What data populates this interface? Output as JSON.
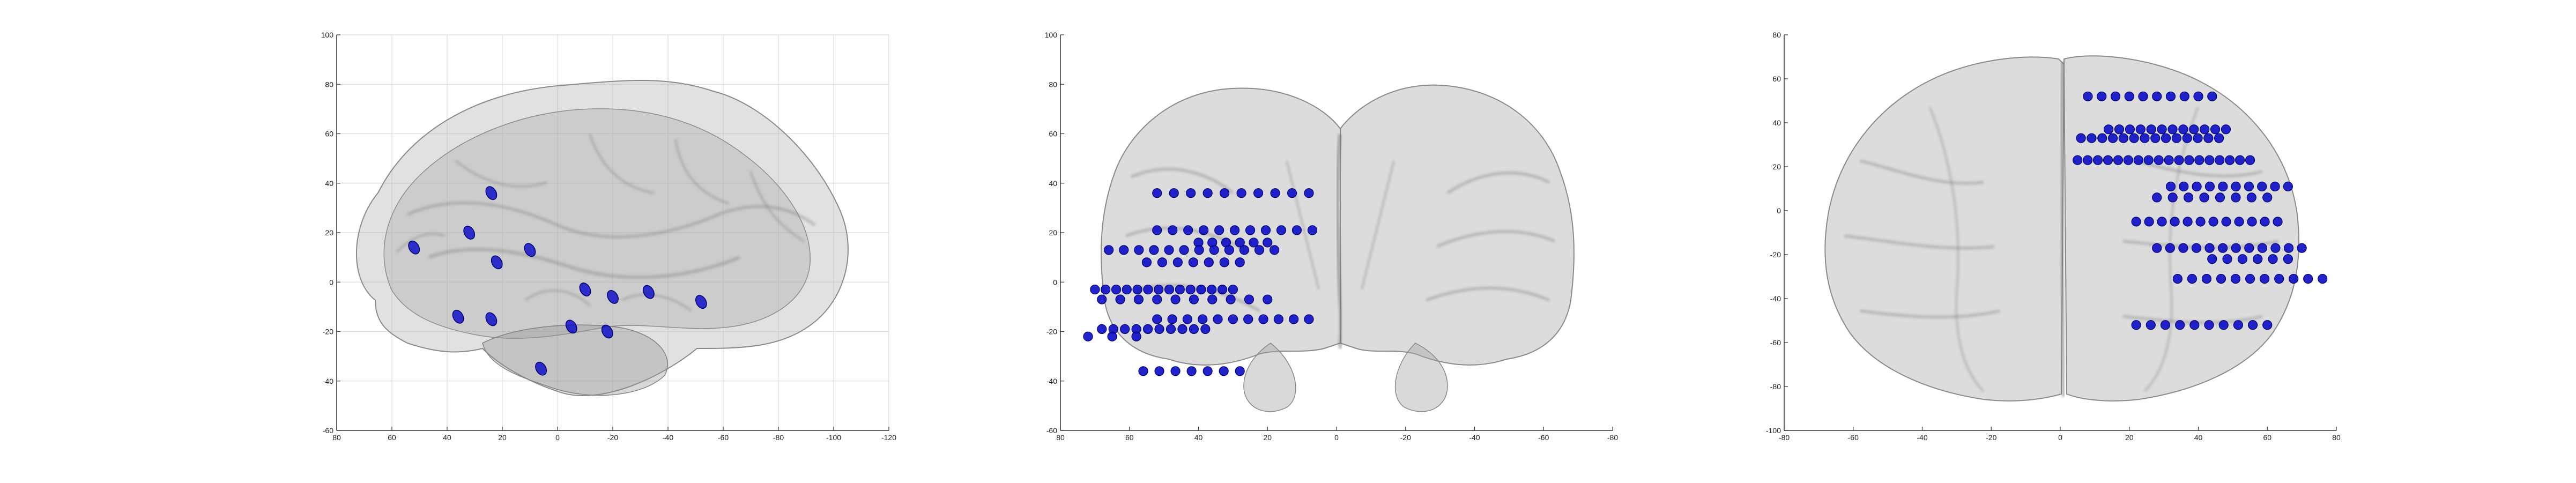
{
  "figure": {
    "brain_fill": "#9a9a9a",
    "brain_stroke": "#7a7a7a",
    "electrode_color": "#1010c8",
    "electrode_edge": "#00006e"
  },
  "chart_data": [
    {
      "type": "scatter",
      "view": "sagittal",
      "grid": true,
      "xlim": [
        80,
        -120
      ],
      "ylim": [
        -60,
        100
      ],
      "xticks": [
        "80",
        "60",
        "40",
        "20",
        "0",
        "-20",
        "-40",
        "-60",
        "-80",
        "-100",
        "-120"
      ],
      "yticks": [
        "100",
        "80",
        "60",
        "40",
        "20",
        "0",
        "-20",
        "-40",
        "-60"
      ],
      "points": [
        {
          "x": 52,
          "y": 14
        },
        {
          "x": 32,
          "y": 20
        },
        {
          "x": 24,
          "y": 36
        },
        {
          "x": 22,
          "y": 8
        },
        {
          "x": 10,
          "y": 13
        },
        {
          "x": 36,
          "y": -14
        },
        {
          "x": 24,
          "y": -15
        },
        {
          "x": -10,
          "y": -3
        },
        {
          "x": -20,
          "y": -6
        },
        {
          "x": -33,
          "y": -4
        },
        {
          "x": -52,
          "y": -8
        },
        {
          "x": -5,
          "y": -18
        },
        {
          "x": -18,
          "y": -20
        },
        {
          "x": 6,
          "y": -35
        }
      ]
    },
    {
      "type": "scatter",
      "view": "coronal",
      "grid": false,
      "xlim": [
        80,
        -80
      ],
      "ylim": [
        -60,
        100
      ],
      "xticks": [
        "80",
        "60",
        "40",
        "20",
        "0",
        "-20",
        "-40",
        "-60",
        "-80"
      ],
      "yticks": [
        "100",
        "80",
        "60",
        "40",
        "20",
        "0",
        "-20",
        "-40",
        "-60"
      ],
      "rows": [
        {
          "y": 36,
          "x_start": 52,
          "x_end": 8,
          "n": 10
        },
        {
          "y": 21,
          "x_start": 52,
          "x_end": 7,
          "n": 11
        },
        {
          "y": 16,
          "x_start": 40,
          "x_end": 20,
          "n": 6
        },
        {
          "y": 13,
          "x_start": 66,
          "x_end": 18,
          "n": 12
        },
        {
          "y": 8,
          "x_start": 55,
          "x_end": 28,
          "n": 7
        },
        {
          "y": -3,
          "x_start": 70,
          "x_end": 30,
          "n": 14
        },
        {
          "y": -7,
          "x_start": 68,
          "x_end": 20,
          "n": 10
        },
        {
          "y": -15,
          "x_start": 52,
          "x_end": 8,
          "n": 11
        },
        {
          "y": -19,
          "x_start": 68,
          "x_end": 38,
          "n": 10
        },
        {
          "y": -22,
          "x_start": 72,
          "x_end": 58,
          "n": 3
        },
        {
          "y": -36,
          "x_start": 56,
          "x_end": 28,
          "n": 7
        }
      ]
    },
    {
      "type": "scatter",
      "view": "axial",
      "grid": false,
      "xlim": [
        -80,
        80
      ],
      "ylim": [
        -100,
        80
      ],
      "xticks": [
        "-80",
        "-60",
        "-40",
        "-20",
        "0",
        "20",
        "40",
        "60",
        "80"
      ],
      "yticks": [
        "80",
        "60",
        "40",
        "20",
        "0",
        "-20",
        "-40",
        "-60",
        "-80",
        "-100"
      ],
      "rows": [
        {
          "y": 52,
          "x_start": 8,
          "x_end": 44,
          "n": 10
        },
        {
          "y": 37,
          "x_start": 14,
          "x_end": 48,
          "n": 12
        },
        {
          "y": 33,
          "x_start": 6,
          "x_end": 46,
          "n": 14
        },
        {
          "y": 23,
          "x_start": 5,
          "x_end": 55,
          "n": 18
        },
        {
          "y": 11,
          "x_start": 32,
          "x_end": 66,
          "n": 10
        },
        {
          "y": 6,
          "x_start": 28,
          "x_end": 60,
          "n": 8
        },
        {
          "y": -5,
          "x_start": 22,
          "x_end": 63,
          "n": 12
        },
        {
          "y": -17,
          "x_start": 28,
          "x_end": 70,
          "n": 12
        },
        {
          "y": -22,
          "x_start": 44,
          "x_end": 66,
          "n": 6
        },
        {
          "y": -31,
          "x_start": 34,
          "x_end": 76,
          "n": 11
        },
        {
          "y": -52,
          "x_start": 22,
          "x_end": 60,
          "n": 10
        }
      ]
    }
  ]
}
